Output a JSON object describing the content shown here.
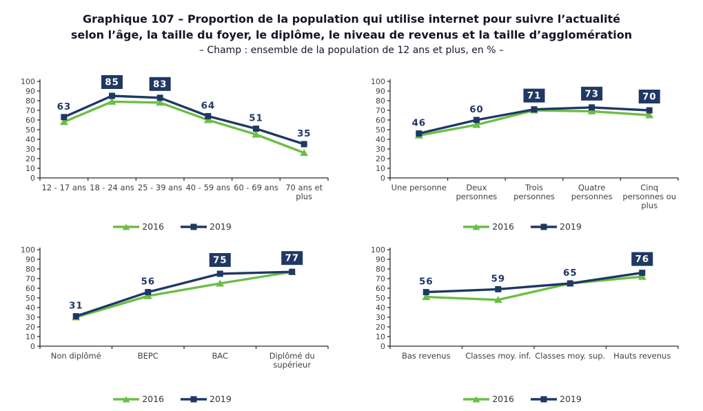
{
  "header": {
    "title_line1": "Graphique 107 – Proportion de la population qui utilise internet pour suivre l’actualité",
    "title_line2": "selon l’âge, la taille du foyer, le diplôme, le niveau de revenus et la taille d’agglomération",
    "subtitle": "– Champ : ensemble de la population de 12 ans et plus, en % –"
  },
  "colors": {
    "series_2016": "#6CBE45",
    "series_2019": "#1F3864",
    "label_box_bg": "#1F3864",
    "label_box_text": "#FFFFFF",
    "axis_line": "#2b2b2b",
    "tick_label": "#3f3f3f"
  },
  "legend": {
    "items": [
      {
        "label": "2016",
        "marker": "triangle",
        "color": "#6CBE45"
      },
      {
        "label": "2019",
        "marker": "square",
        "color": "#1F3864"
      }
    ]
  },
  "chart_data": [
    {
      "id": "age",
      "type": "line",
      "categories": [
        "12 - 17 ans",
        "18 - 24 ans",
        "25 - 39 ans",
        "40 - 59 ans",
        "60 - 69 ans",
        "70 ans et plus"
      ],
      "category_lines": [
        [
          "12 - 17 ans"
        ],
        [
          "18 - 24 ans"
        ],
        [
          "25 - 39 ans"
        ],
        [
          "40 - 59 ans"
        ],
        [
          "60 - 69 ans"
        ],
        [
          "70 ans et",
          "plus"
        ]
      ],
      "series": [
        {
          "name": "2016",
          "marker": "triangle",
          "color": "#6CBE45",
          "values": [
            58,
            79,
            78,
            60,
            45,
            26
          ]
        },
        {
          "name": "2019",
          "marker": "square",
          "color": "#1F3864",
          "values": [
            63,
            85,
            83,
            64,
            51,
            35
          ]
        }
      ],
      "data_labels": {
        "series": "2019",
        "values": [
          63,
          85,
          83,
          64,
          51,
          35
        ],
        "boxed": [
          false,
          true,
          true,
          false,
          false,
          false
        ]
      },
      "ylim": [
        0,
        100
      ],
      "ytick_step": 10,
      "grid": false
    },
    {
      "id": "foyer",
      "type": "line",
      "categories": [
        "Une personne",
        "Deux personnes",
        "Trois personnes",
        "Quatre personnes",
        "Cinq personnes ou plus"
      ],
      "category_lines": [
        [
          "Une personne"
        ],
        [
          "Deux",
          "personnes"
        ],
        [
          "Trois",
          "personnes"
        ],
        [
          "Quatre",
          "personnes"
        ],
        [
          "Cinq",
          "personnes ou",
          "plus"
        ]
      ],
      "series": [
        {
          "name": "2016",
          "marker": "triangle",
          "color": "#6CBE45",
          "values": [
            44,
            55,
            70,
            69,
            65
          ]
        },
        {
          "name": "2019",
          "marker": "square",
          "color": "#1F3864",
          "values": [
            46,
            60,
            71,
            73,
            70
          ]
        }
      ],
      "data_labels": {
        "series": "2019",
        "values": [
          46,
          60,
          71,
          73,
          70
        ],
        "boxed": [
          false,
          false,
          true,
          true,
          true
        ]
      },
      "ylim": [
        0,
        100
      ],
      "ytick_step": 10,
      "grid": false
    },
    {
      "id": "diplome",
      "type": "line",
      "categories": [
        "Non diplômé",
        "BEPC",
        "BAC",
        "Diplômé du supérieur"
      ],
      "category_lines": [
        [
          "Non diplômé"
        ],
        [
          "BEPC"
        ],
        [
          "BAC"
        ],
        [
          "Diplômé du",
          "supérieur"
        ]
      ],
      "series": [
        {
          "name": "2016",
          "marker": "triangle",
          "color": "#6CBE45",
          "values": [
            30,
            52,
            65,
            77
          ]
        },
        {
          "name": "2019",
          "marker": "square",
          "color": "#1F3864",
          "values": [
            31,
            56,
            75,
            77
          ]
        }
      ],
      "data_labels": {
        "series": "2019",
        "values": [
          31,
          56,
          75,
          77
        ],
        "boxed": [
          false,
          false,
          true,
          true
        ]
      },
      "ylim": [
        0,
        100
      ],
      "ytick_step": 10,
      "grid": false
    },
    {
      "id": "revenus",
      "type": "line",
      "categories": [
        "Bas revenus",
        "Classes moy. inf.",
        "Classes moy. sup.",
        "Hauts revenus"
      ],
      "category_lines": [
        [
          "Bas revenus"
        ],
        [
          "Classes moy. inf."
        ],
        [
          "Classes moy. sup."
        ],
        [
          "Hauts revenus"
        ]
      ],
      "series": [
        {
          "name": "2016",
          "marker": "triangle",
          "color": "#6CBE45",
          "values": [
            51,
            48,
            65,
            72
          ]
        },
        {
          "name": "2019",
          "marker": "square",
          "color": "#1F3864",
          "values": [
            56,
            59,
            65,
            76
          ]
        }
      ],
      "data_labels": {
        "series": "2019",
        "values": [
          56,
          59,
          65,
          76
        ],
        "boxed": [
          false,
          false,
          false,
          true
        ]
      },
      "ylim": [
        0,
        100
      ],
      "ytick_step": 10,
      "grid": false
    }
  ]
}
